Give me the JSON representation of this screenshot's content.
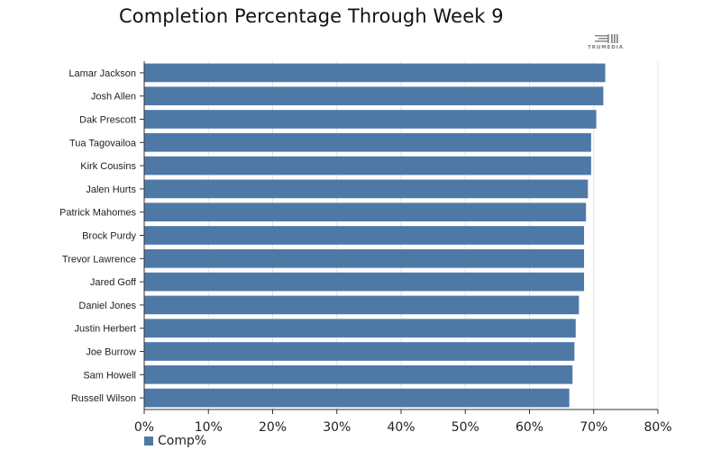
{
  "chart_data": {
    "type": "bar",
    "orientation": "horizontal",
    "title": "Completion Percentage Through Week 9",
    "categories": [
      "Lamar Jackson",
      "Josh Allen",
      "Dak Prescott",
      "Tua Tagovailoa",
      "Kirk Cousins",
      "Jalen Hurts",
      "Patrick Mahomes",
      "Brock Purdy",
      "Trevor Lawrence",
      "Jared Goff",
      "Daniel Jones",
      "Justin Herbert",
      "Joe Burrow",
      "Sam Howell",
      "Russell Wilson"
    ],
    "series": [
      {
        "name": "Comp%",
        "color": "#4e79a7",
        "values": [
          71.8,
          71.5,
          70.4,
          69.6,
          69.6,
          69.1,
          68.8,
          68.5,
          68.5,
          68.5,
          67.7,
          67.2,
          67.0,
          66.7,
          66.2
        ]
      }
    ],
    "xlim": [
      0,
      80
    ],
    "xticks": [
      "0%",
      "10%",
      "20%",
      "30%",
      "40%",
      "50%",
      "60%",
      "70%",
      "80%"
    ],
    "xtick_values": [
      0,
      10,
      20,
      30,
      40,
      50,
      60,
      70,
      80
    ],
    "grid": true,
    "legend_position": "bottom-left"
  },
  "logo": {
    "text": "TRUMEDIA"
  }
}
